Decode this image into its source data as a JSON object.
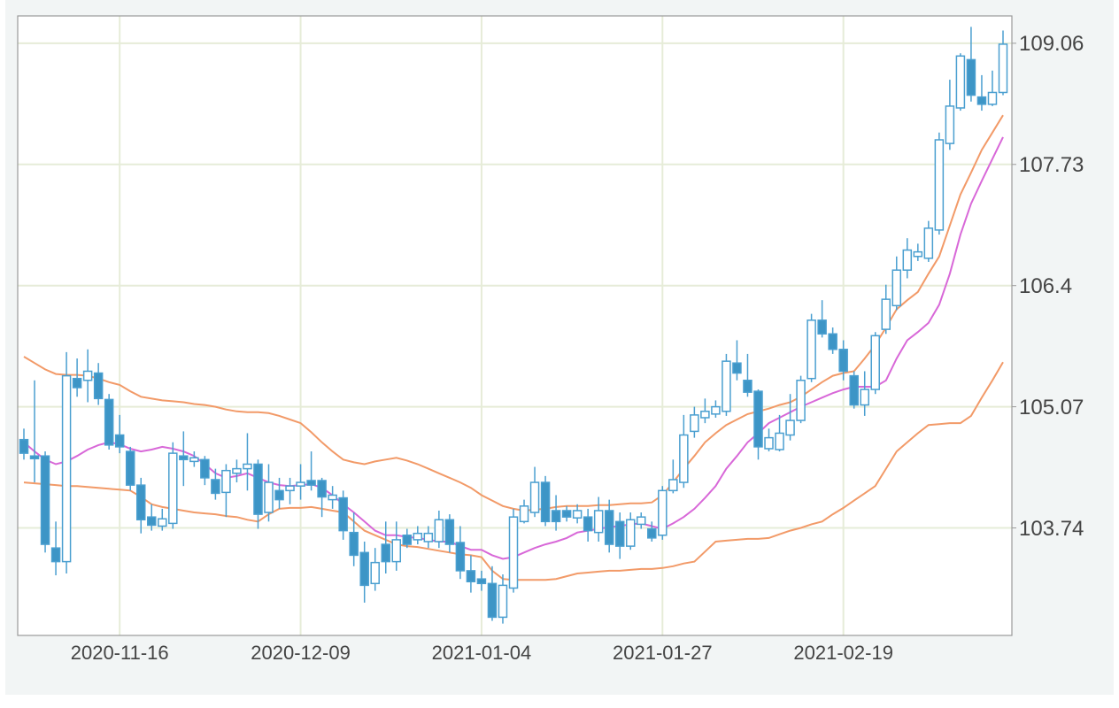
{
  "chart_data": {
    "type": "candlestick",
    "categories": [
      null,
      null,
      null,
      null,
      null,
      null,
      null,
      null,
      null,
      "2020-11-16",
      null,
      null,
      null,
      null,
      null,
      null,
      null,
      null,
      null,
      null,
      null,
      null,
      null,
      null,
      null,
      null,
      "2020-12-09",
      null,
      null,
      null,
      null,
      null,
      null,
      null,
      null,
      null,
      null,
      null,
      null,
      null,
      null,
      null,
      null,
      "2021-01-04",
      null,
      null,
      null,
      null,
      null,
      null,
      null,
      null,
      null,
      null,
      null,
      null,
      null,
      null,
      null,
      null,
      "2021-01-27",
      null,
      null,
      null,
      null,
      null,
      null,
      null,
      null,
      null,
      null,
      null,
      null,
      null,
      null,
      null,
      null,
      "2021-02-19",
      null,
      null,
      null,
      null,
      null,
      null,
      null,
      null,
      null,
      null,
      null,
      null,
      null,
      null,
      null
    ],
    "open": [
      104.71,
      104.53,
      104.53,
      103.52,
      103.37,
      105.38,
      105.36,
      105.44,
      105.15,
      104.76,
      104.58,
      104.21,
      103.86,
      103.76,
      103.79,
      104.53,
      104.47,
      104.49,
      104.27,
      104.13,
      104.34,
      104.39,
      104.44,
      103.91,
      104.15,
      104.15,
      104.2,
      104.26,
      104.26,
      104.05,
      104.07,
      103.69,
      103.47,
      103.13,
      103.56,
      103.37,
      103.66,
      103.61,
      103.59,
      103.59,
      103.83,
      103.58,
      103.27,
      103.18,
      103.13,
      102.76,
      103.08,
      103.81,
      103.91,
      104.24,
      103.93,
      103.93,
      103.85,
      103.86,
      103.69,
      103.93,
      103.81,
      103.54,
      103.78,
      103.73,
      103.66,
      104.15,
      104.24,
      104.8,
      104.95,
      104.99,
      105.02,
      105.55,
      105.36,
      105.24,
      104.61,
      104.6,
      104.76,
      104.92,
      105.38,
      106.02,
      105.87,
      105.7,
      105.41,
      105.09,
      105.26,
      105.92,
      106.18,
      106.57,
      106.72,
      106.7,
      107.01,
      107.96,
      108.35,
      108.88,
      108.47,
      108.39,
      108.52
    ],
    "high": [
      104.83,
      105.36,
      104.58,
      103.81,
      105.67,
      105.6,
      105.7,
      105.55,
      105.21,
      104.98,
      104.63,
      104.29,
      104.0,
      103.95,
      104.68,
      104.8,
      104.58,
      104.53,
      104.39,
      104.44,
      104.49,
      104.78,
      104.49,
      104.44,
      104.29,
      104.29,
      104.44,
      104.58,
      104.29,
      104.2,
      104.15,
      103.91,
      103.59,
      103.52,
      103.81,
      103.81,
      103.73,
      103.76,
      103.76,
      103.93,
      103.89,
      103.76,
      103.44,
      103.27,
      103.32,
      103.23,
      103.95,
      104.05,
      104.41,
      104.31,
      104.1,
      103.98,
      104.0,
      103.95,
      104.08,
      104.05,
      103.91,
      103.91,
      103.91,
      103.81,
      104.2,
      104.49,
      104.98,
      105.07,
      105.16,
      105.14,
      105.65,
      105.8,
      105.65,
      105.26,
      104.83,
      104.98,
      105.21,
      105.41,
      106.09,
      106.24,
      105.94,
      105.8,
      105.46,
      105.46,
      105.89,
      106.41,
      106.72,
      106.92,
      106.86,
      107.11,
      108.08,
      108.66,
      108.95,
      109.24,
      108.71,
      108.76,
      109.2
    ],
    "low": [
      104.49,
      104.24,
      103.47,
      103.22,
      103.24,
      105.18,
      105.12,
      105.09,
      104.6,
      104.56,
      104.15,
      103.68,
      103.71,
      103.71,
      103.73,
      104.2,
      104.41,
      104.21,
      104.05,
      103.86,
      104.24,
      104.15,
      103.73,
      103.81,
      103.95,
      104.0,
      104.05,
      104.15,
      103.86,
      103.95,
      103.61,
      103.32,
      102.92,
      103.05,
      103.24,
      103.27,
      103.52,
      103.56,
      103.52,
      103.52,
      103.47,
      103.18,
      103.03,
      103.05,
      102.72,
      102.69,
      103.03,
      103.79,
      103.86,
      103.76,
      103.71,
      103.81,
      103.79,
      103.59,
      103.59,
      103.47,
      103.4,
      103.5,
      103.73,
      103.59,
      103.61,
      104.12,
      104.18,
      104.73,
      104.89,
      104.95,
      104.97,
      105.36,
      105.18,
      104.49,
      104.58,
      104.58,
      104.7,
      104.89,
      105.34,
      105.83,
      105.65,
      105.36,
      105.05,
      104.97,
      105.21,
      105.87,
      106.13,
      106.48,
      106.67,
      106.66,
      106.96,
      107.89,
      108.32,
      108.42,
      108.32,
      108.37,
      108.49
    ],
    "close": [
      104.56,
      104.5,
      103.56,
      103.37,
      105.41,
      105.28,
      105.46,
      105.16,
      104.65,
      104.63,
      104.21,
      103.83,
      103.77,
      103.84,
      104.56,
      104.49,
      104.51,
      104.29,
      104.12,
      104.37,
      104.39,
      104.44,
      103.89,
      104.24,
      104.05,
      104.2,
      104.24,
      104.21,
      104.08,
      104.1,
      103.71,
      103.44,
      103.11,
      103.36,
      103.37,
      103.61,
      103.56,
      103.68,
      103.68,
      103.83,
      103.56,
      103.27,
      103.15,
      103.13,
      102.76,
      103.11,
      103.86,
      103.98,
      104.24,
      103.81,
      103.81,
      103.86,
      103.93,
      103.71,
      103.93,
      103.56,
      103.54,
      103.83,
      103.86,
      103.63,
      104.15,
      104.27,
      104.76,
      104.98,
      105.02,
      105.07,
      105.57,
      105.44,
      105.23,
      104.63,
      104.73,
      104.78,
      104.92,
      105.36,
      106.02,
      105.87,
      105.7,
      105.46,
      105.09,
      105.26,
      105.85,
      106.25,
      106.57,
      106.79,
      106.77,
      107.03,
      108.0,
      108.37,
      108.92,
      108.49,
      108.39,
      108.52,
      109.05
    ],
    "up_color": "#ffffff",
    "down_color": "#3d95c6",
    "edge_color": "#4a9fd0",
    "lines": [
      {
        "color": "#f29a68",
        "values": [
          105.62,
          105.55,
          105.48,
          105.43,
          105.42,
          105.42,
          105.41,
          105.38,
          105.34,
          105.31,
          105.24,
          105.18,
          105.16,
          105.14,
          105.13,
          105.12,
          105.1,
          105.09,
          105.07,
          105.04,
          105.02,
          105.01,
          105.01,
          105.0,
          104.97,
          104.93,
          104.89,
          104.79,
          104.68,
          104.58,
          104.49,
          104.46,
          104.44,
          104.47,
          104.49,
          104.51,
          104.48,
          104.44,
          104.39,
          104.34,
          104.29,
          104.24,
          104.18,
          104.1,
          104.04,
          103.98,
          103.95,
          103.93,
          103.94,
          103.95,
          103.97,
          103.98,
          103.98,
          103.98,
          103.99,
          103.99,
          104.0,
          104.01,
          104.01,
          104.02,
          104.1,
          104.24,
          104.39,
          104.53,
          104.68,
          104.78,
          104.87,
          104.93,
          104.99,
          105.02,
          105.05,
          105.09,
          105.12,
          105.18,
          105.26,
          105.34,
          105.41,
          105.44,
          105.46,
          105.6,
          105.75,
          105.94,
          106.14,
          106.24,
          106.33,
          106.53,
          106.72,
          107.06,
          107.4,
          107.64,
          107.89,
          108.08,
          108.27
        ]
      },
      {
        "color": "#d868d8",
        "values": [
          104.68,
          104.58,
          104.49,
          104.44,
          104.47,
          104.53,
          104.6,
          104.65,
          104.68,
          104.66,
          104.61,
          104.58,
          104.6,
          104.63,
          104.61,
          104.58,
          104.53,
          104.44,
          104.34,
          104.29,
          104.31,
          104.34,
          104.29,
          104.24,
          104.21,
          104.2,
          104.21,
          104.22,
          104.18,
          104.1,
          104.0,
          103.91,
          103.81,
          103.71,
          103.66,
          103.66,
          103.64,
          103.63,
          103.61,
          103.59,
          103.59,
          103.54,
          103.5,
          103.5,
          103.44,
          103.4,
          103.42,
          103.47,
          103.52,
          103.56,
          103.59,
          103.63,
          103.69,
          103.71,
          103.73,
          103.75,
          103.76,
          103.78,
          103.79,
          103.76,
          103.73,
          103.79,
          103.86,
          103.95,
          104.07,
          104.2,
          104.39,
          104.53,
          104.68,
          104.78,
          104.89,
          104.95,
          105.01,
          105.07,
          105.12,
          105.17,
          105.22,
          105.26,
          105.29,
          105.29,
          105.29,
          105.36,
          105.6,
          105.8,
          105.89,
          105.99,
          106.19,
          106.53,
          106.96,
          107.3,
          107.55,
          107.79,
          108.03
        ]
      },
      {
        "color": "#f29a68",
        "values": [
          104.24,
          104.23,
          104.22,
          104.21,
          104.2,
          104.2,
          104.19,
          104.18,
          104.17,
          104.16,
          104.15,
          104.08,
          104.0,
          103.97,
          103.95,
          103.93,
          103.91,
          103.9,
          103.89,
          103.87,
          103.86,
          103.83,
          103.81,
          103.89,
          103.95,
          103.96,
          103.96,
          103.97,
          103.95,
          103.93,
          103.91,
          103.81,
          103.71,
          103.66,
          103.61,
          103.56,
          103.54,
          103.53,
          103.51,
          103.49,
          103.47,
          103.45,
          103.44,
          103.42,
          103.27,
          103.18,
          103.17,
          103.17,
          103.17,
          103.17,
          103.18,
          103.21,
          103.24,
          103.25,
          103.26,
          103.27,
          103.27,
          103.28,
          103.29,
          103.29,
          103.3,
          103.32,
          103.35,
          103.37,
          103.48,
          103.59,
          103.6,
          103.61,
          103.62,
          103.62,
          103.63,
          103.67,
          103.71,
          103.74,
          103.78,
          103.81,
          103.89,
          103.96,
          104.04,
          104.12,
          104.2,
          104.39,
          104.58,
          104.68,
          104.78,
          104.87,
          104.88,
          104.89,
          104.89,
          104.97,
          105.17,
          105.36,
          105.56
        ]
      }
    ],
    "ylim": [
      102.56,
      109.36
    ],
    "yticks": [
      103.74,
      105.07,
      106.4,
      107.73,
      109.06
    ],
    "y_axis_side": "right",
    "grid": true
  }
}
